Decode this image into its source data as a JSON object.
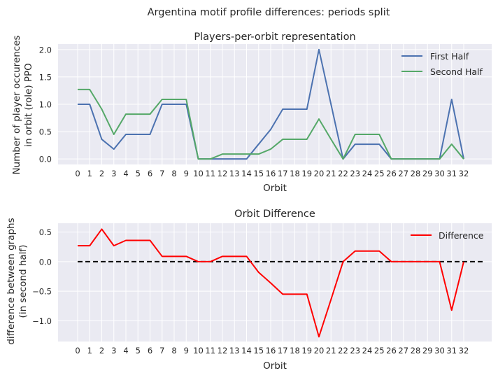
{
  "colors": {
    "background": "#ffffff",
    "axes_face": "#eaeaf2",
    "grid": "#ffffff",
    "first_half": "#4c72b0",
    "second_half": "#55a868",
    "difference": "#ff0000",
    "zero_line": "#000000"
  },
  "chart_data": [
    {
      "type": "line",
      "suptitle": "Argentina motif profile differences: periods split",
      "title": "Players-per-orbit representation",
      "xlabel": "Orbit",
      "ylabel": [
        "Number of player occurences",
        "in orbit (role) PPO"
      ],
      "categories": [
        "0",
        "1",
        "2",
        "3",
        "4",
        "5",
        "6",
        "7",
        "8",
        "9",
        "10",
        "11",
        "12",
        "13",
        "14",
        "15",
        "16",
        "17",
        "18",
        "19",
        "20",
        "21",
        "22",
        "23",
        "24",
        "25",
        "26",
        "27",
        "28",
        "29",
        "30",
        "31",
        "32"
      ],
      "yticks": [
        "0.0",
        "0.5",
        "1.0",
        "1.5",
        "2.0"
      ],
      "ylim": [
        -0.1,
        2.1
      ],
      "grid": true,
      "legend": "top-right",
      "series": [
        {
          "name": "First Half",
          "values": [
            1.0,
            1.0,
            0.36,
            0.18,
            0.45,
            0.45,
            0.45,
            1.0,
            1.0,
            1.0,
            0.0,
            0.0,
            0.0,
            0.0,
            0.0,
            0.27,
            0.54,
            0.91,
            0.91,
            0.91,
            2.0,
            1.0,
            0.0,
            0.27,
            0.27,
            0.27,
            0.0,
            0.0,
            0.0,
            0.0,
            0.0,
            1.09,
            0.0
          ]
        },
        {
          "name": "Second Half",
          "values": [
            1.27,
            1.27,
            0.91,
            0.45,
            0.82,
            0.82,
            0.82,
            1.09,
            1.09,
            1.09,
            0.0,
            0.0,
            0.09,
            0.09,
            0.09,
            0.09,
            0.18,
            0.36,
            0.36,
            0.36,
            0.73,
            0.36,
            0.0,
            0.45,
            0.45,
            0.45,
            0.0,
            0.0,
            0.0,
            0.0,
            0.0,
            0.27,
            0.0
          ]
        }
      ]
    },
    {
      "type": "line",
      "title": "Orbit Difference",
      "xlabel": "Orbit",
      "ylabel": [
        "difference between graphs",
        "(in second half)"
      ],
      "categories": [
        "0",
        "1",
        "2",
        "3",
        "4",
        "5",
        "6",
        "7",
        "8",
        "9",
        "10",
        "11",
        "12",
        "13",
        "14",
        "15",
        "16",
        "17",
        "18",
        "19",
        "20",
        "21",
        "22",
        "23",
        "24",
        "25",
        "26",
        "27",
        "28",
        "29",
        "30",
        "31",
        "32"
      ],
      "yticks": [
        "−1.0",
        "−0.5",
        "0.0",
        "0.5"
      ],
      "ylim": [
        -1.35,
        0.65
      ],
      "grid": true,
      "legend": "top-right",
      "series": [
        {
          "name": "Difference",
          "values": [
            0.27,
            0.27,
            0.55,
            0.27,
            0.36,
            0.36,
            0.36,
            0.09,
            0.09,
            0.09,
            0.0,
            0.0,
            0.09,
            0.09,
            0.09,
            -0.18,
            -0.36,
            -0.55,
            -0.55,
            -0.55,
            -1.27,
            -0.64,
            0.0,
            0.18,
            0.18,
            0.18,
            0.0,
            0.0,
            0.0,
            0.0,
            0.0,
            -0.82,
            0.0
          ]
        }
      ],
      "reference_line": {
        "y": 0.0,
        "x_range": [
          "0",
          "32"
        ],
        "style": "dashed"
      }
    }
  ]
}
